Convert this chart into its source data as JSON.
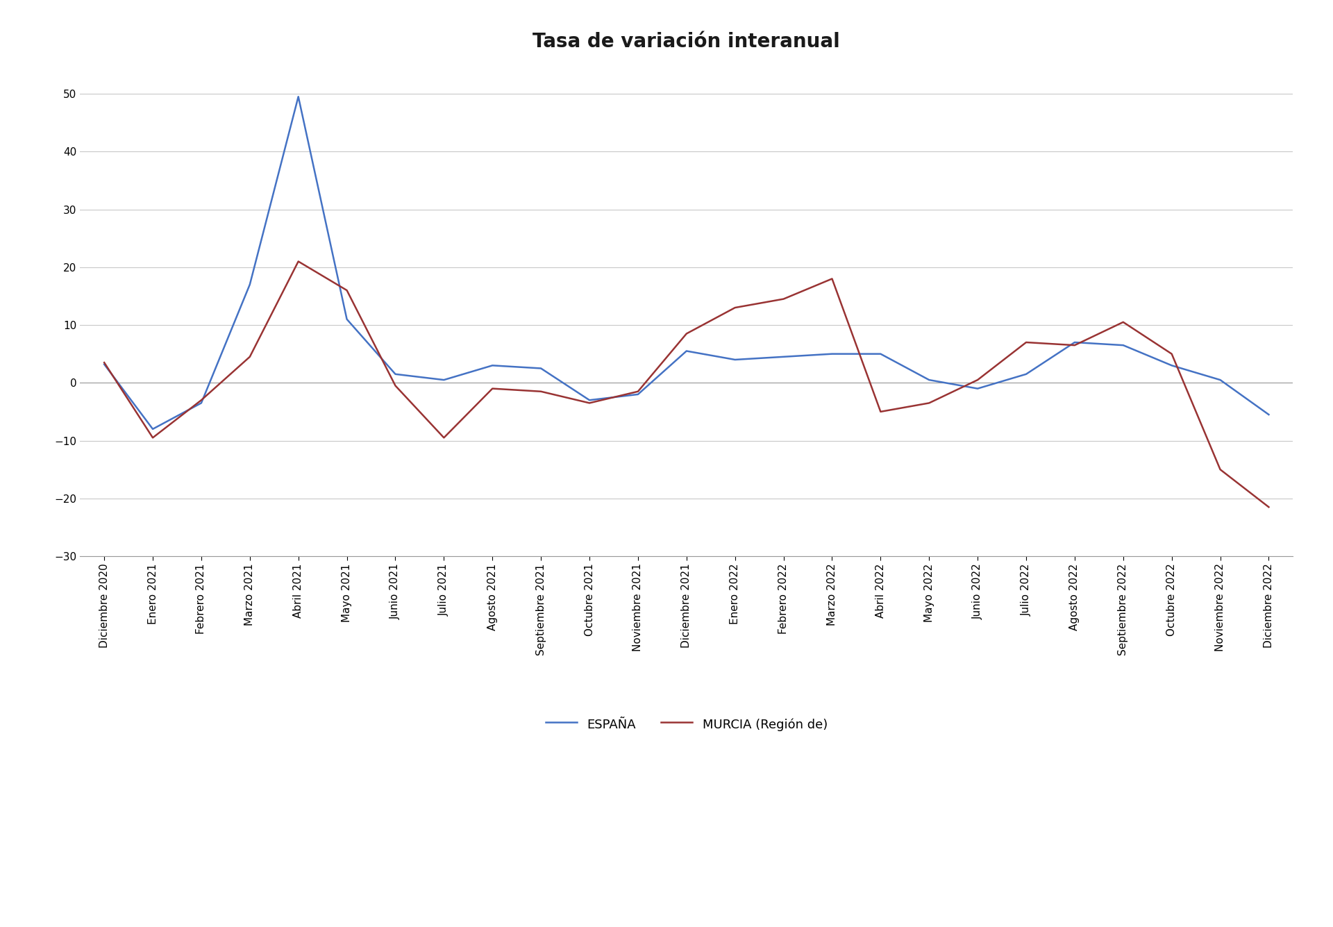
{
  "title": "Tasa de variación interanual",
  "espana": [
    3.2,
    -8.0,
    -3.5,
    17.0,
    49.5,
    11.0,
    1.5,
    0.5,
    3.0,
    2.5,
    -3.0,
    -2.0,
    5.5,
    4.0,
    4.5,
    5.0,
    5.0,
    0.5,
    -1.0,
    1.5,
    7.0,
    6.5,
    3.0,
    0.5,
    -5.5
  ],
  "murcia": [
    3.5,
    -9.5,
    -3.0,
    4.5,
    21.0,
    16.0,
    -0.5,
    -9.5,
    -1.0,
    -1.5,
    -3.5,
    -1.5,
    8.5,
    13.0,
    14.5,
    18.0,
    -5.0,
    -3.5,
    0.5,
    7.0,
    6.5,
    10.5,
    5.0,
    -15.0,
    -21.5
  ],
  "labels": [
    "Diciembre 2020",
    "Enero 2021",
    "Febrero 2021",
    "Marzo 2021",
    "Abril 2021",
    "Mayo 2021",
    "Junio 2021",
    "Julio 2021",
    "Agosto 2021",
    "Septiembre 2021",
    "Octubre 2021",
    "Noviembre 2021",
    "Diciembre 2021",
    "Enero 2022",
    "Febrero 2022",
    "Marzo 2022",
    "Abril 2022",
    "Mayo 2022",
    "Junio 2022",
    "Julio 2022",
    "Agosto 2022",
    "Septiembre 2022",
    "Octubre 2022",
    "Noviembre 2022",
    "Diciembre 2022"
  ],
  "espana_color": "#4472c4",
  "murcia_color": "#993333",
  "ylim": [
    -30,
    55
  ],
  "yticks": [
    -30,
    -20,
    -10,
    0,
    10,
    20,
    30,
    40,
    50
  ],
  "legend_espana": "ESPAÑA",
  "legend_murcia": "MURCIA (Región de)",
  "background_color": "#ffffff",
  "grid_color": "#c8c8c8",
  "title_fontsize": 20,
  "tick_fontsize": 11,
  "legend_fontsize": 13
}
